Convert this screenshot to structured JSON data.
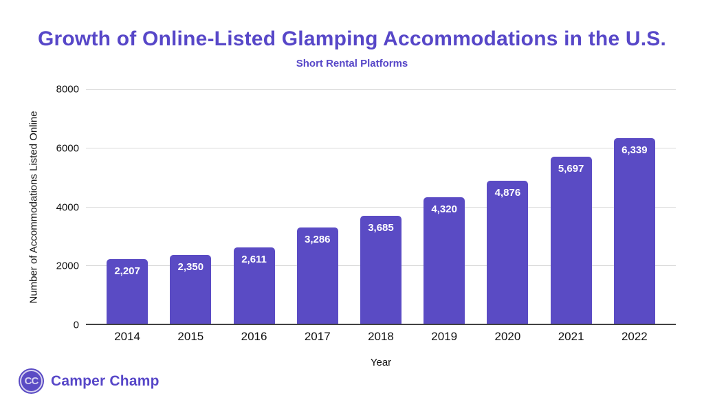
{
  "header": {
    "title": "Growth of Online-Listed Glamping Accommodations in the U.S.",
    "subtitle": "Short Rental Platforms"
  },
  "chart_data": {
    "type": "bar",
    "title": "Growth of Online-Listed Glamping Accommodations in the U.S.",
    "subtitle": "Short Rental Platforms",
    "categories": [
      "2014",
      "2015",
      "2016",
      "2017",
      "2018",
      "2019",
      "2020",
      "2021",
      "2022"
    ],
    "values": [
      2207,
      2350,
      2611,
      3286,
      3685,
      4320,
      4876,
      5697,
      6339
    ],
    "value_labels": [
      "2,207",
      "2,350",
      "2,611",
      "3,286",
      "3,685",
      "4,320",
      "4,876",
      "5,697",
      "6,339"
    ],
    "xlabel": "Year",
    "ylabel": "Number of Accommodations Listed Online",
    "ylim": [
      0,
      8000
    ],
    "yticks": [
      0,
      2000,
      4000,
      6000,
      8000
    ],
    "grid": true,
    "legend": false
  },
  "footer": {
    "logo_text": "CC",
    "brand": "Camper Champ"
  },
  "colors": {
    "accent": "#5747c8",
    "bar": "#5a4bc4",
    "grid": "#d9d9d9",
    "axis": "#424242",
    "text": "#111111",
    "bar_label": "#ffffff",
    "logo_ring": "#d7d2f0"
  }
}
